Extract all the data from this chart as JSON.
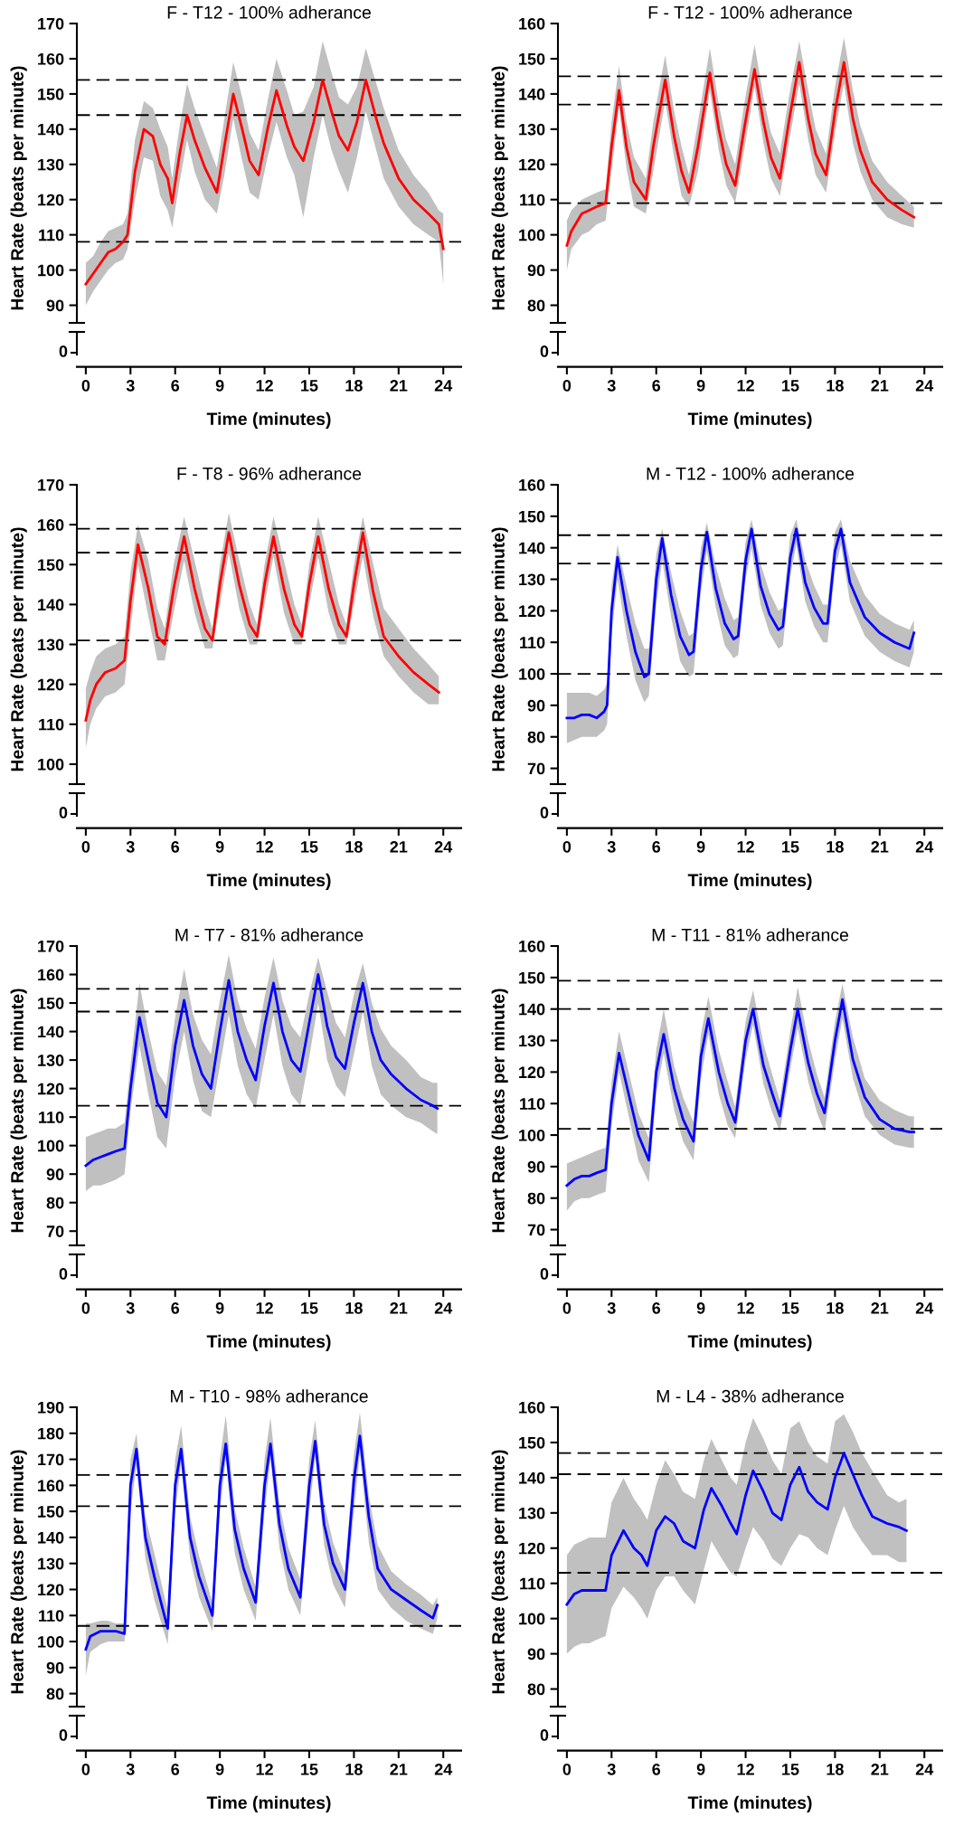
{
  "chart_data": [
    {
      "type": "line",
      "title": "F - T12 - 100% adherance",
      "xlabel": "Time (minutes)",
      "ylabel": "Heart Rate (beats per minute)",
      "annotations": [
        "0"
      ],
      "xlim": [
        -0.6,
        25.2
      ],
      "xticks": [
        0,
        3,
        6,
        9,
        12,
        15,
        18,
        21,
        24
      ],
      "ylim": [
        85,
        170
      ],
      "yticks": [
        90,
        100,
        110,
        120,
        130,
        140,
        150,
        160,
        170
      ],
      "line_style": "solid",
      "marker": "none",
      "x": [
        0,
        0.5,
        1,
        1.5,
        2,
        2.5,
        2.8,
        3.3,
        3.9,
        4.5,
        5,
        5.5,
        5.8,
        6.3,
        6.8,
        7.3,
        8,
        8.8,
        9.3,
        9.9,
        10.5,
        11,
        11.6,
        12.2,
        12.8,
        13.5,
        14,
        14.6,
        15.3,
        15.9,
        16.5,
        17,
        17.6,
        18.2,
        18.8,
        19.5,
        20,
        21,
        22,
        23,
        23.7,
        24
      ],
      "series": [
        {
          "color": "#ff0000",
          "values": [
            96,
            99,
            102,
            105,
            106,
            108,
            110,
            128,
            140,
            138,
            130,
            126,
            119,
            133,
            144,
            137,
            129,
            122,
            135,
            150,
            140,
            131,
            127,
            140,
            151,
            141,
            135,
            131,
            142,
            154,
            145,
            138,
            134,
            142,
            154,
            143,
            136,
            126,
            120,
            116,
            113,
            106
          ],
          "lower": [
            90,
            94,
            97,
            100,
            102,
            103,
            106,
            120,
            132,
            131,
            121,
            117,
            112,
            125,
            137,
            128,
            120,
            116,
            127,
            143,
            131,
            122,
            120,
            132,
            142,
            132,
            127,
            115,
            132,
            144,
            134,
            128,
            122,
            132,
            145,
            134,
            126,
            118,
            113,
            110,
            108,
            96
          ],
          "upper": [
            102,
            104,
            108,
            111,
            112,
            113,
            116,
            137,
            148,
            146,
            140,
            135,
            126,
            141,
            153,
            146,
            138,
            129,
            143,
            159,
            149,
            139,
            134,
            148,
            160,
            151,
            144,
            145,
            152,
            165,
            156,
            149,
            147,
            152,
            163,
            153,
            146,
            134,
            127,
            122,
            117,
            116
          ]
        }
      ],
      "ref_lines": [
        {
          "axis": "y",
          "value": 154,
          "color": "#000000",
          "line_style": "dashed"
        },
        {
          "axis": "y",
          "value": 144,
          "color": "#000000",
          "line_style": "dashed"
        },
        {
          "axis": "y",
          "value": 108,
          "color": "#000000",
          "line_style": "dashed"
        }
      ]
    },
    {
      "type": "line",
      "title": "F - T12 - 100% adherance",
      "xlabel": "Time (minutes)",
      "ylabel": "Heart Rate (beats per minute)",
      "annotations": [
        "0"
      ],
      "xlim": [
        -0.6,
        25.2
      ],
      "xticks": [
        0,
        3,
        6,
        9,
        12,
        15,
        18,
        21,
        24
      ],
      "ylim": [
        75,
        160
      ],
      "yticks": [
        80,
        90,
        100,
        110,
        120,
        130,
        140,
        150,
        160
      ],
      "line_style": "solid",
      "marker": "none",
      "x": [
        0,
        0.3,
        1,
        1.5,
        2,
        2.6,
        3,
        3.5,
        4,
        4.5,
        5.3,
        5.8,
        6.6,
        7.2,
        7.7,
        8.2,
        8.8,
        9.6,
        10.2,
        10.7,
        11.3,
        11.9,
        12.6,
        13.2,
        13.7,
        14.3,
        14.9,
        15.6,
        16.2,
        16.7,
        17.4,
        18,
        18.6,
        19.2,
        19.7,
        20.5,
        21.5,
        22.5,
        23.3
      ],
      "series": [
        {
          "color": "#ff0000",
          "values": [
            97,
            101,
            106,
            107,
            108,
            109,
            125,
            141,
            125,
            115,
            110,
            125,
            144,
            128,
            118,
            112,
            125,
            146,
            130,
            120,
            114,
            130,
            147,
            132,
            122,
            116,
            132,
            149,
            133,
            123,
            117,
            135,
            149,
            133,
            124,
            115,
            110,
            107,
            105
          ],
          "lower": [
            90,
            96,
            100,
            101,
            103,
            104,
            118,
            136,
            119,
            108,
            106,
            118,
            138,
            122,
            111,
            108,
            118,
            141,
            124,
            114,
            109,
            124,
            142,
            126,
            116,
            111,
            126,
            143,
            127,
            117,
            112,
            129,
            143,
            126,
            118,
            110,
            105,
            103,
            102
          ],
          "upper": [
            104,
            107,
            110,
            111,
            112,
            113,
            132,
            148,
            132,
            122,
            116,
            132,
            151,
            135,
            125,
            117,
            132,
            153,
            137,
            127,
            120,
            137,
            154,
            139,
            129,
            123,
            139,
            155,
            141,
            130,
            123,
            142,
            156,
            141,
            131,
            121,
            115,
            111,
            108
          ]
        }
      ],
      "ref_lines": [
        {
          "axis": "y",
          "value": 145,
          "color": "#000000",
          "line_style": "dashed"
        },
        {
          "axis": "y",
          "value": 137,
          "color": "#000000",
          "line_style": "dashed"
        },
        {
          "axis": "y",
          "value": 109,
          "color": "#000000",
          "line_style": "dashed"
        }
      ]
    },
    {
      "type": "line",
      "title": "F - T8 - 96% adherance",
      "xlabel": "Time (minutes)",
      "ylabel": "Heart Rate (beats per minute)",
      "annotations": [
        "0"
      ],
      "xlim": [
        -0.6,
        25.2
      ],
      "xticks": [
        0,
        3,
        6,
        9,
        12,
        15,
        18,
        21,
        24
      ],
      "ylim": [
        95,
        170
      ],
      "yticks": [
        100,
        110,
        120,
        130,
        140,
        150,
        160,
        170
      ],
      "line_style": "solid",
      "marker": "none",
      "x": [
        0,
        0.3,
        0.7,
        1.3,
        2,
        2.6,
        3,
        3.5,
        4.2,
        4.8,
        5.3,
        5.9,
        6.6,
        7.3,
        8,
        8.5,
        9,
        9.6,
        10.3,
        11,
        11.5,
        12,
        12.6,
        13.3,
        14,
        14.5,
        15,
        15.6,
        16.3,
        17,
        17.5,
        18,
        18.6,
        19.3,
        20,
        21,
        22,
        23,
        23.7
      ],
      "series": [
        {
          "color": "#ff0000",
          "values": [
            111,
            116,
            120,
            123,
            124,
            126,
            141,
            155,
            144,
            132,
            130,
            144,
            157,
            144,
            134,
            131,
            145,
            158,
            145,
            135,
            132,
            145,
            157,
            144,
            135,
            132,
            145,
            157,
            144,
            135,
            132,
            145,
            158,
            143,
            132,
            127,
            123,
            120,
            118
          ],
          "lower": [
            104,
            110,
            114,
            117,
            118,
            120,
            134,
            150,
            137,
            126,
            126,
            138,
            151,
            138,
            129,
            129,
            140,
            153,
            139,
            130,
            130,
            140,
            152,
            138,
            130,
            130,
            140,
            152,
            138,
            130,
            130,
            140,
            152,
            137,
            127,
            122,
            118,
            115,
            115
          ],
          "upper": [
            119,
            123,
            127,
            129,
            130,
            132,
            148,
            160,
            151,
            139,
            134,
            150,
            162,
            151,
            140,
            134,
            150,
            163,
            151,
            140,
            135,
            150,
            162,
            151,
            140,
            135,
            150,
            162,
            151,
            140,
            135,
            150,
            162,
            150,
            139,
            134,
            129,
            125,
            122
          ]
        }
      ],
      "ref_lines": [
        {
          "axis": "y",
          "value": 159,
          "color": "#000000",
          "line_style": "dashed"
        },
        {
          "axis": "y",
          "value": 153,
          "color": "#000000",
          "line_style": "dashed"
        },
        {
          "axis": "y",
          "value": 131,
          "color": "#000000",
          "line_style": "dashed"
        }
      ]
    },
    {
      "type": "line",
      "title": "M - T12 - 100% adherance",
      "xlabel": "Time (minutes)",
      "ylabel": "Heart Rate (beats per minute)",
      "annotations": [
        "0"
      ],
      "xlim": [
        -0.6,
        25.2
      ],
      "xticks": [
        0,
        3,
        6,
        9,
        12,
        15,
        18,
        21,
        24
      ],
      "ylim": [
        65,
        160
      ],
      "yticks": [
        70,
        80,
        90,
        100,
        110,
        120,
        130,
        140,
        150,
        160
      ],
      "line_style": "solid",
      "marker": "none",
      "x": [
        0,
        0.5,
        1,
        1.5,
        2,
        2.5,
        2.7,
        3,
        3.4,
        4,
        4.6,
        5.2,
        5.5,
        6,
        6.4,
        7,
        7.6,
        8.2,
        8.5,
        9,
        9.4,
        10,
        10.6,
        11.2,
        11.5,
        12,
        12.4,
        13,
        13.6,
        14.2,
        14.5,
        15,
        15.4,
        16,
        16.6,
        17.2,
        17.5,
        18,
        18.4,
        19,
        20,
        21,
        22,
        23,
        23.3
      ],
      "series": [
        {
          "color": "#0000ff",
          "values": [
            86,
            86,
            87,
            87,
            86,
            88,
            90,
            120,
            137,
            120,
            107,
            99,
            100,
            130,
            143,
            125,
            112,
            106,
            107,
            133,
            145,
            127,
            116,
            111,
            112,
            136,
            146,
            128,
            119,
            114,
            115,
            137,
            146,
            129,
            121,
            116,
            116,
            139,
            146,
            129,
            118,
            113,
            110,
            108,
            113
          ],
          "lower": [
            78,
            79,
            80,
            80,
            80,
            82,
            84,
            112,
            130,
            112,
            98,
            91,
            93,
            122,
            136,
            118,
            104,
            99,
            100,
            126,
            139,
            121,
            109,
            105,
            106,
            130,
            140,
            122,
            113,
            108,
            109,
            131,
            141,
            123,
            115,
            110,
            110,
            133,
            141,
            123,
            112,
            107,
            104,
            102,
            107
          ],
          "upper": [
            94,
            94,
            94,
            94,
            93,
            95,
            97,
            128,
            141,
            128,
            116,
            108,
            108,
            138,
            146,
            132,
            120,
            112,
            113,
            140,
            148,
            134,
            124,
            117,
            118,
            142,
            149,
            135,
            126,
            120,
            121,
            144,
            149,
            136,
            128,
            122,
            122,
            145,
            149,
            136,
            125,
            119,
            116,
            114,
            117
          ]
        }
      ],
      "ref_lines": [
        {
          "axis": "y",
          "value": 144,
          "color": "#000000",
          "line_style": "dashed"
        },
        {
          "axis": "y",
          "value": 135,
          "color": "#000000",
          "line_style": "dashed"
        },
        {
          "axis": "y",
          "value": 100,
          "color": "#000000",
          "line_style": "dashed"
        }
      ]
    },
    {
      "type": "line",
      "title": "M - T7 - 81% adherance",
      "xlabel": "Time (minutes)",
      "ylabel": "Heart Rate (beats per minute)",
      "annotations": [
        "0"
      ],
      "xlim": [
        -0.6,
        25.2
      ],
      "xticks": [
        0,
        3,
        6,
        9,
        12,
        15,
        18,
        21,
        24
      ],
      "ylim": [
        65,
        170
      ],
      "yticks": [
        70,
        80,
        90,
        100,
        110,
        120,
        130,
        140,
        150,
        160,
        170
      ],
      "line_style": "solid",
      "marker": "none",
      "x": [
        0,
        0.5,
        1,
        1.5,
        2,
        2.6,
        3,
        3.6,
        4.2,
        4.8,
        5.4,
        6,
        6.6,
        7.2,
        7.8,
        8.4,
        9,
        9.6,
        10.2,
        10.8,
        11.4,
        12,
        12.6,
        13.2,
        13.8,
        14.4,
        15,
        15.6,
        16.2,
        16.8,
        17.4,
        18,
        18.6,
        19.2,
        19.8,
        20.5,
        21.5,
        22.5,
        23.3,
        23.6
      ],
      "series": [
        {
          "color": "#0000ff",
          "values": [
            93,
            95,
            96,
            97,
            98,
            99,
            120,
            145,
            130,
            115,
            110,
            135,
            151,
            135,
            125,
            120,
            140,
            158,
            140,
            130,
            123,
            142,
            157,
            140,
            130,
            126,
            143,
            160,
            142,
            131,
            127,
            143,
            157,
            140,
            130,
            125,
            120,
            116,
            114,
            113
          ],
          "lower": [
            84,
            86,
            86,
            87,
            88,
            90,
            112,
            135,
            118,
            103,
            99,
            124,
            140,
            123,
            112,
            110,
            128,
            146,
            128,
            118,
            113,
            130,
            146,
            128,
            118,
            114,
            131,
            150,
            130,
            121,
            117,
            132,
            147,
            128,
            118,
            114,
            110,
            108,
            105,
            104
          ],
          "upper": [
            103,
            104,
            105,
            106,
            106,
            108,
            128,
            157,
            140,
            126,
            121,
            145,
            162,
            146,
            137,
            132,
            151,
            167,
            151,
            141,
            134,
            152,
            166,
            151,
            142,
            138,
            153,
            166,
            154,
            143,
            138,
            153,
            164,
            150,
            141,
            135,
            130,
            124,
            122,
            122
          ]
        }
      ],
      "ref_lines": [
        {
          "axis": "y",
          "value": 155,
          "color": "#000000",
          "line_style": "dashed"
        },
        {
          "axis": "y",
          "value": 147,
          "color": "#000000",
          "line_style": "dashed"
        },
        {
          "axis": "y",
          "value": 114,
          "color": "#000000",
          "line_style": "dashed"
        }
      ]
    },
    {
      "type": "line",
      "title": "M - T11 - 81% adherance",
      "xlabel": "Time (minutes)",
      "ylabel": "Heart Rate (beats per minute)",
      "annotations": [
        "0"
      ],
      "xlim": [
        -0.6,
        25.2
      ],
      "xticks": [
        0,
        3,
        6,
        9,
        12,
        15,
        18,
        21,
        24
      ],
      "ylim": [
        65,
        160
      ],
      "yticks": [
        70,
        80,
        90,
        100,
        110,
        120,
        130,
        140,
        150,
        160
      ],
      "line_style": "solid",
      "marker": "none",
      "x": [
        0,
        0.5,
        1,
        1.5,
        2,
        2.6,
        3,
        3.5,
        4.2,
        4.8,
        5.5,
        6,
        6.5,
        7.2,
        7.8,
        8.5,
        9,
        9.5,
        10.2,
        10.8,
        11.3,
        12,
        12.5,
        13.2,
        13.8,
        14.3,
        15,
        15.5,
        16.2,
        16.8,
        17.3,
        18,
        18.5,
        19.2,
        20,
        21,
        22,
        23,
        23.3
      ],
      "series": [
        {
          "color": "#0000ff",
          "values": [
            84,
            86,
            87,
            87,
            88,
            89,
            110,
            126,
            112,
            100,
            92,
            120,
            132,
            115,
            105,
            98,
            125,
            137,
            120,
            110,
            104,
            130,
            140,
            122,
            113,
            106,
            127,
            140,
            123,
            113,
            107,
            130,
            143,
            124,
            112,
            105,
            102,
            101,
            101
          ],
          "lower": [
            76,
            79,
            80,
            80,
            81,
            82,
            103,
            120,
            105,
            92,
            85,
            113,
            126,
            108,
            98,
            92,
            118,
            132,
            113,
            103,
            99,
            124,
            135,
            116,
            107,
            101,
            121,
            134,
            117,
            107,
            101,
            124,
            137,
            118,
            106,
            100,
            97,
            96,
            96
          ],
          "upper": [
            91,
            92,
            93,
            94,
            95,
            96,
            117,
            133,
            119,
            107,
            99,
            127,
            140,
            122,
            112,
            104,
            132,
            144,
            127,
            117,
            109,
            136,
            146,
            129,
            119,
            111,
            133,
            147,
            130,
            119,
            112,
            136,
            148,
            131,
            118,
            111,
            108,
            106,
            106
          ]
        }
      ],
      "ref_lines": [
        {
          "axis": "y",
          "value": 149,
          "color": "#000000",
          "line_style": "dashed"
        },
        {
          "axis": "y",
          "value": 140,
          "color": "#000000",
          "line_style": "dashed"
        },
        {
          "axis": "y",
          "value": 102,
          "color": "#000000",
          "line_style": "dashed"
        }
      ]
    },
    {
      "type": "line",
      "title": "M - T10 - 98% adherance",
      "xlabel": "Time (minutes)",
      "ylabel": "Heart Rate (beats per minute)",
      "annotations": [
        "0"
      ],
      "xlim": [
        -0.6,
        25.2
      ],
      "xticks": [
        0,
        3,
        6,
        9,
        12,
        15,
        18,
        21,
        24
      ],
      "ylim": [
        75,
        190
      ],
      "yticks": [
        80,
        90,
        100,
        110,
        120,
        130,
        140,
        150,
        160,
        170,
        180,
        190
      ],
      "line_style": "solid",
      "marker": "none",
      "x": [
        0,
        0.3,
        1,
        1.5,
        2,
        2.6,
        3,
        3.4,
        4,
        4.6,
        5.5,
        6,
        6.4,
        7,
        7.6,
        8.5,
        9,
        9.4,
        10,
        10.6,
        11.4,
        12,
        12.4,
        13,
        13.6,
        14.4,
        15,
        15.4,
        16,
        16.6,
        17.4,
        18,
        18.4,
        19,
        19.6,
        20.5,
        21.5,
        22.5,
        23.3,
        23.6
      ],
      "series": [
        {
          "color": "#0000ff",
          "values": [
            97,
            102,
            104,
            104,
            104,
            103,
            160,
            174,
            140,
            125,
            105,
            160,
            174,
            140,
            125,
            110,
            160,
            176,
            143,
            128,
            115,
            160,
            176,
            145,
            128,
            117,
            160,
            177,
            145,
            130,
            120,
            162,
            179,
            148,
            128,
            120,
            116,
            112,
            109,
            114
          ],
          "lower": [
            87,
            96,
            99,
            100,
            100,
            100,
            150,
            168,
            132,
            116,
            99,
            150,
            168,
            132,
            117,
            104,
            150,
            170,
            134,
            120,
            108,
            150,
            170,
            136,
            120,
            110,
            150,
            171,
            137,
            122,
            113,
            150,
            172,
            138,
            120,
            113,
            108,
            105,
            103,
            109
          ],
          "upper": [
            107,
            107,
            108,
            108,
            107,
            107,
            170,
            180,
            148,
            134,
            112,
            170,
            183,
            148,
            133,
            115,
            170,
            187,
            151,
            136,
            121,
            170,
            186,
            153,
            136,
            124,
            170,
            185,
            153,
            138,
            126,
            172,
            188,
            156,
            137,
            127,
            122,
            118,
            114,
            117
          ]
        }
      ],
      "ref_lines": [
        {
          "axis": "y",
          "value": 164,
          "color": "#000000",
          "line_style": "dashed"
        },
        {
          "axis": "y",
          "value": 152,
          "color": "#000000",
          "line_style": "dashed"
        },
        {
          "axis": "y",
          "value": 106,
          "color": "#000000",
          "line_style": "dashed"
        }
      ]
    },
    {
      "type": "line",
      "title": "M - L4 - 38% adherance",
      "xlabel": "Time (minutes)",
      "ylabel": "Heart Rate (beats per minute)",
      "annotations": [
        "0"
      ],
      "xlim": [
        -0.6,
        25.2
      ],
      "xticks": [
        0,
        3,
        6,
        9,
        12,
        15,
        18,
        21,
        24
      ],
      "ylim": [
        75,
        160
      ],
      "yticks": [
        80,
        90,
        100,
        110,
        120,
        130,
        140,
        150,
        160
      ],
      "line_style": "solid",
      "marker": "none",
      "x": [
        0,
        0.5,
        1,
        1.5,
        2,
        2.6,
        3,
        3.8,
        4.5,
        5,
        5.4,
        6,
        6.6,
        7.2,
        7.8,
        8.6,
        9.2,
        9.7,
        10.4,
        11,
        11.4,
        12,
        12.5,
        13.2,
        13.8,
        14.4,
        15,
        15.6,
        16.2,
        16.8,
        17.5,
        18,
        18.6,
        19.2,
        19.8,
        20.5,
        21.5,
        22.3,
        22.8
      ],
      "series": [
        {
          "color": "#0000ff",
          "values": [
            104,
            107,
            108,
            108,
            108,
            108,
            118,
            125,
            120,
            118,
            115,
            125,
            129,
            127,
            122,
            120,
            131,
            137,
            132,
            127,
            124,
            135,
            142,
            136,
            130,
            128,
            138,
            143,
            136,
            133,
            131,
            140,
            147,
            141,
            135,
            129,
            127,
            126,
            125
          ],
          "lower": [
            90,
            92,
            93,
            93,
            94,
            95,
            103,
            109,
            106,
            103,
            100,
            108,
            112,
            112,
            108,
            104,
            114,
            122,
            117,
            113,
            112,
            120,
            126,
            122,
            117,
            115,
            120,
            124,
            123,
            120,
            118,
            125,
            132,
            126,
            122,
            118,
            118,
            116,
            116
          ],
          "upper": [
            118,
            121,
            122,
            123,
            123,
            123,
            133,
            140,
            134,
            131,
            128,
            138,
            145,
            141,
            136,
            134,
            145,
            151,
            145,
            140,
            138,
            150,
            157,
            151,
            145,
            141,
            154,
            156,
            150,
            146,
            144,
            156,
            158,
            153,
            147,
            142,
            135,
            133,
            134
          ]
        }
      ],
      "ref_lines": [
        {
          "axis": "y",
          "value": 147,
          "color": "#000000",
          "line_style": "dashed"
        },
        {
          "axis": "y",
          "value": 141,
          "color": "#000000",
          "line_style": "dashed"
        },
        {
          "axis": "y",
          "value": 113,
          "color": "#000000",
          "line_style": "dashed"
        }
      ]
    }
  ]
}
